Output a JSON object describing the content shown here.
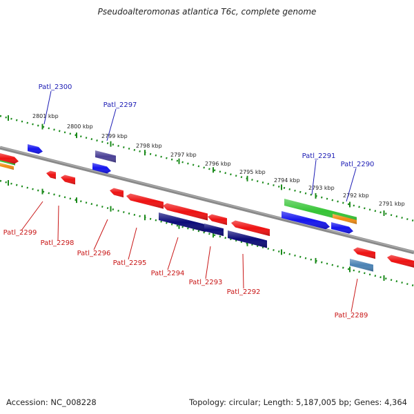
{
  "title": "Pseudoalteromonas atlantica T6c, complete genome",
  "footer": {
    "accession": "Accession: NC_008228",
    "topology": "Topology: circular; Length: 5,187,005 bp; Genes: 4,364"
  },
  "colors": {
    "backbone": "#8a8a8a",
    "ruler": "#1a8a1a",
    "forward_label": "#1a1ab4",
    "reverse_label": "#c81414",
    "red_gene": "#ee1111",
    "blue_gene": "#1414ee",
    "navy_gene": "#0b0b78",
    "purple_gene": "#4b4196",
    "steel_gene": "#4a82b4",
    "green_gene": "#35c435",
    "orange_gene": "#f08c14"
  },
  "ruler_labels": [
    "2801 kbp",
    "2800 kbp",
    "2799 kbp",
    "2798 kbp",
    "2797 kbp",
    "2796 kbp",
    "2795 kbp",
    "2794 kbp",
    "2793 kbp",
    "2792 kbp",
    "2791 kbp"
  ],
  "gene_labels": {
    "forward": [
      "Patl_2300",
      "Patl_2297",
      "Patl_2291",
      "Patl_2290"
    ],
    "reverse": [
      "Patl_2299",
      "Patl_2298",
      "Patl_2296",
      "Patl_2295",
      "Patl_2294",
      "Patl_2293",
      "Patl_2292",
      "Patl_2289"
    ]
  }
}
